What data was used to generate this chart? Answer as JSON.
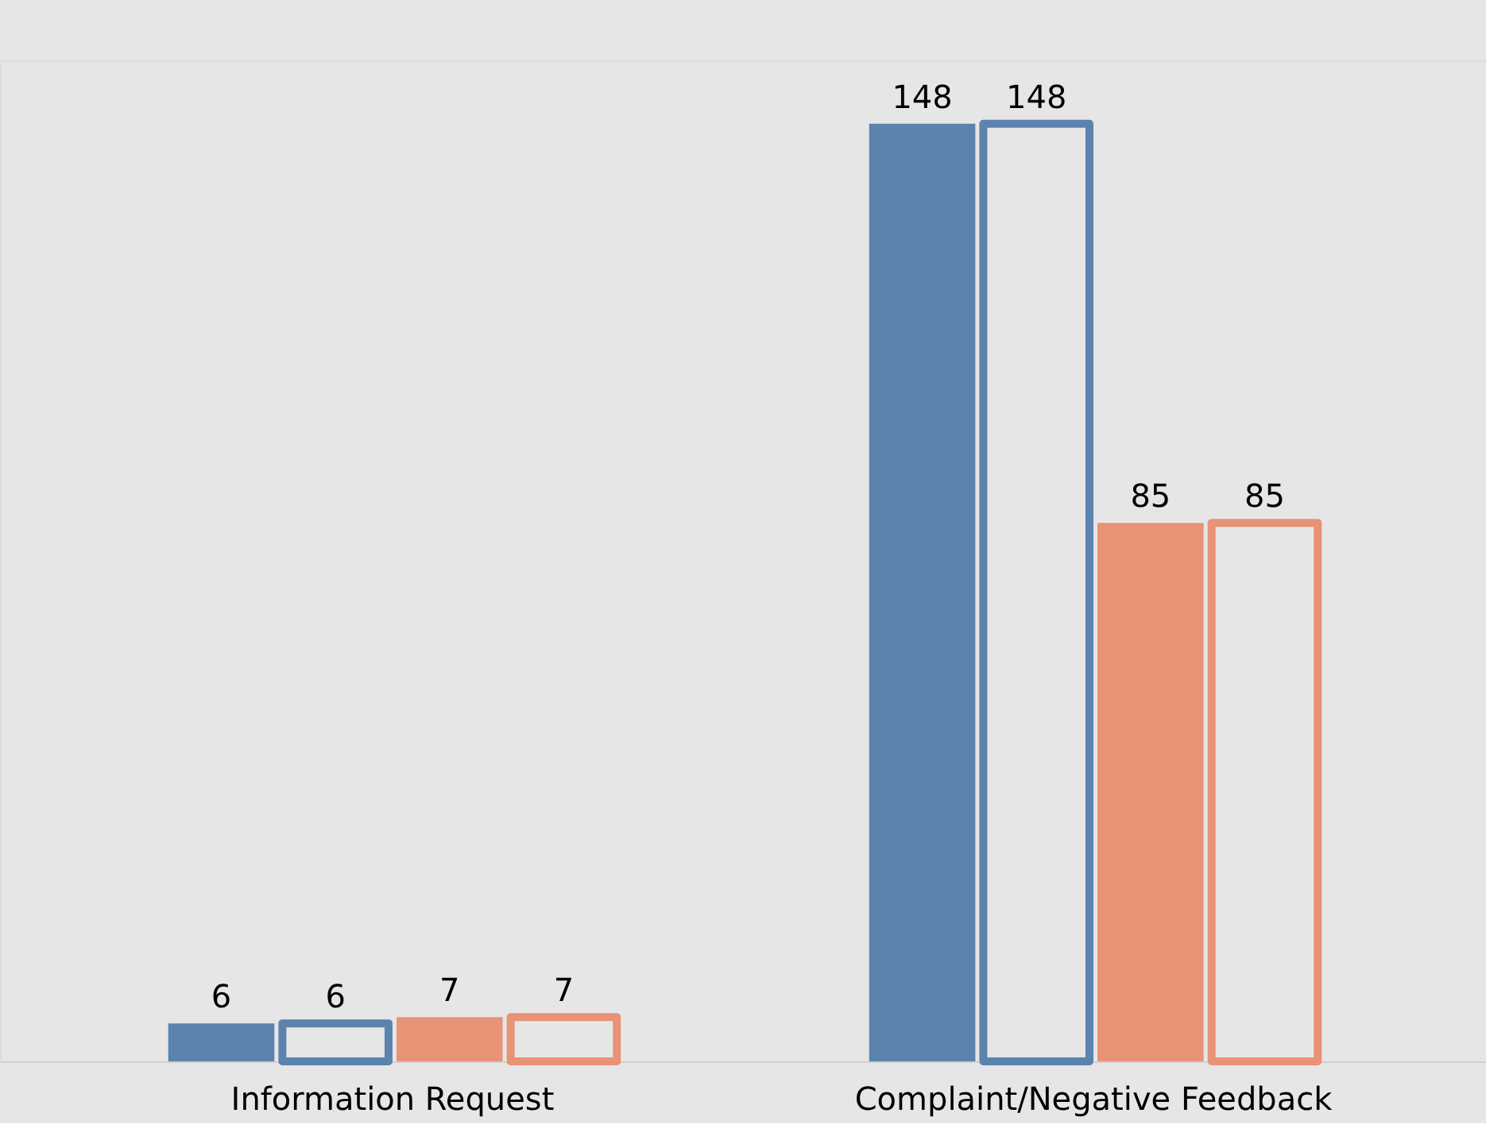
{
  "chart_data": {
    "type": "bar",
    "categories": [
      "Information Request",
      "Complaint/Negative Feedback"
    ],
    "series": [
      {
        "color": "#5b83ad",
        "values": [
          6,
          148
        ]
      },
      {
        "color": "#5b83ad",
        "values": [
          6,
          148
        ]
      },
      {
        "color": "#e89276",
        "values": [
          7,
          85
        ]
      },
      {
        "color": "#e89276",
        "values": [
          7,
          85
        ]
      }
    ],
    "ylim": [
      0,
      158
    ],
    "data_labels": true,
    "grid": false,
    "legend": false
  }
}
